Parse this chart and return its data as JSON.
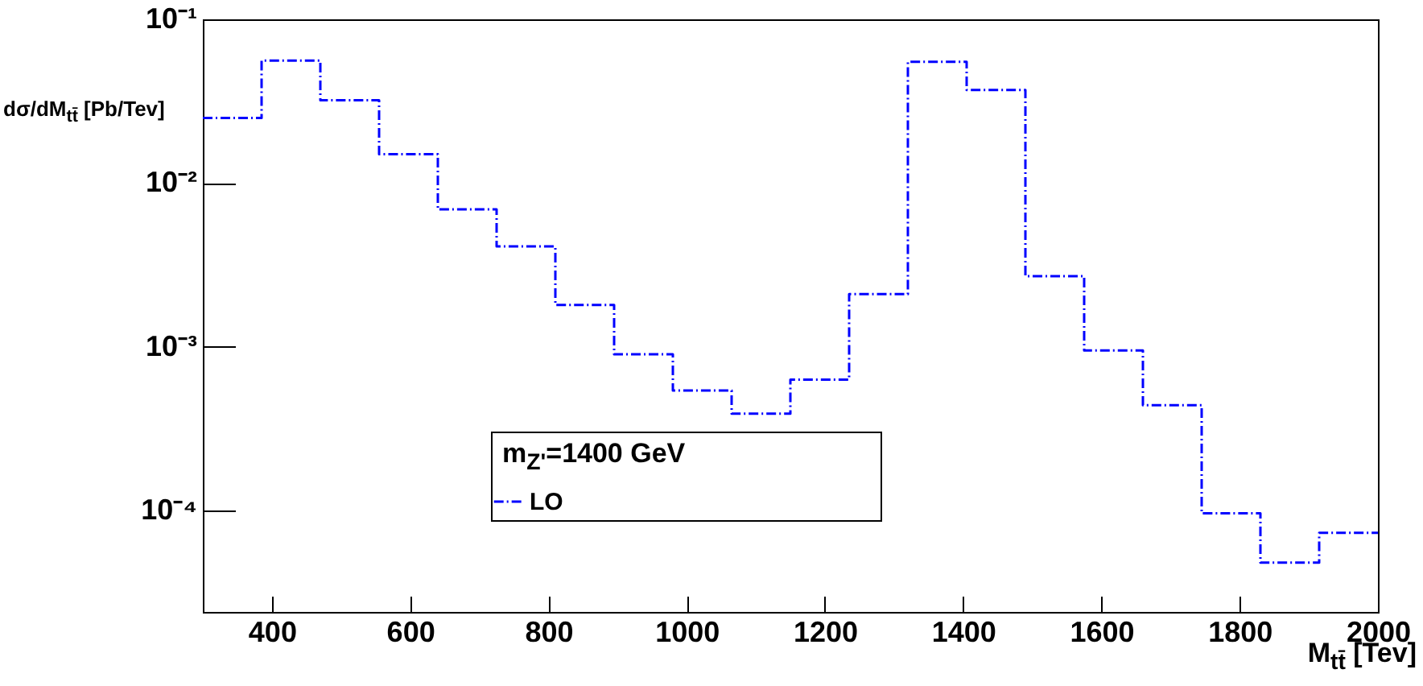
{
  "chart_data": {
    "type": "histogram",
    "xlabel": "M$_{tt̄}$ [Tev]",
    "ylabel": "dσ/dM$_{tt̄}$ [Pb/Tev]",
    "legend_title": "m$_{Z'}$=1400 GeV",
    "bins": [
      300,
      385,
      470,
      555,
      640,
      725,
      810,
      895,
      980,
      1065,
      1150,
      1235,
      1320,
      1405,
      1490,
      1575,
      1660,
      1745,
      1830,
      1915,
      2000
    ],
    "series": [
      {
        "name": "LO",
        "color": "#0000ff",
        "values": [
          0.025,
          0.056,
          0.032,
          0.015,
          0.0069,
          0.0041,
          0.0018,
          0.0009,
          0.00054,
          0.00039,
          0.00063,
          0.0021,
          0.055,
          0.037,
          0.0027,
          0.00095,
          0.00044,
          9.6e-05,
          4.8e-05,
          7.3e-05
        ]
      }
    ],
    "xlim": [
      300,
      2000
    ],
    "xticks": [
      400,
      600,
      800,
      1000,
      1200,
      1400,
      1600,
      1800,
      2000
    ],
    "ylim": [
      2.4e-05,
      0.1
    ],
    "yticks": [
      {
        "value": 0.1,
        "label": "10⁻¹"
      },
      {
        "value": 0.01,
        "label": "10⁻²"
      },
      {
        "value": 0.001,
        "label": "10⁻³"
      },
      {
        "value": 0.0001,
        "label": "10⁻⁴"
      }
    ],
    "log": "y",
    "grid": false,
    "legend": "bottom",
    "line_style": "dashed"
  }
}
